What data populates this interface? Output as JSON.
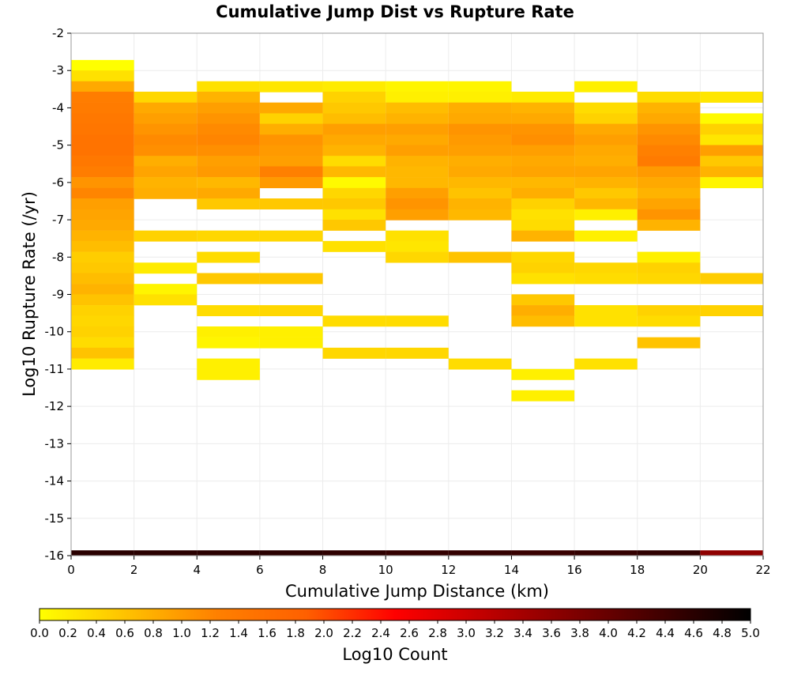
{
  "chart_data": {
    "type": "heatmap",
    "title": "Cumulative Jump Dist vs Rupture Rate",
    "xlabel": "Cumulative Jump Distance (km)",
    "ylabel": "Log10 Rupture Rate (/yr)",
    "xlim": [
      0,
      22
    ],
    "ylim": [
      -16,
      -2
    ],
    "x_ticks": [
      "0",
      "2",
      "4",
      "6",
      "8",
      "10",
      "12",
      "14",
      "16",
      "18",
      "20",
      "22"
    ],
    "y_ticks": [
      "-2",
      "-3",
      "-4",
      "-5",
      "-6",
      "-7",
      "-8",
      "-9",
      "-10",
      "-11",
      "-12",
      "-13",
      "-14",
      "-15",
      "-16"
    ],
    "x_bin_width": 2,
    "y_bin_height": 0.285,
    "grid": true,
    "colorbar": {
      "label": "Log10 Count",
      "range": [
        0,
        5
      ],
      "ticks": [
        "0.0",
        "0.2",
        "0.4",
        "0.6",
        "0.8",
        "1.0",
        "1.2",
        "1.4",
        "1.6",
        "1.8",
        "2.0",
        "2.2",
        "2.4",
        "2.6",
        "2.8",
        "3.0",
        "3.2",
        "3.4",
        "3.6",
        "3.8",
        "4.0",
        "4.2",
        "4.4",
        "4.6",
        "4.8",
        "5.0"
      ],
      "stops": [
        "#ffff00",
        "#ffc000",
        "#ff8000",
        "#ff6000",
        "#ff0000",
        "#c00000",
        "#800000",
        "#400000",
        "#000000"
      ]
    },
    "cells": [
      {
        "x": 0,
        "values": [
          [
            -2.86,
            0.0
          ],
          [
            -3.14,
            0.3
          ],
          [
            -3.43,
            0.85
          ],
          [
            -3.71,
            1.3
          ],
          [
            -4.0,
            1.35
          ],
          [
            -4.29,
            1.4
          ],
          [
            -4.57,
            1.45
          ],
          [
            -4.86,
            1.5
          ],
          [
            -5.14,
            1.5
          ],
          [
            -5.43,
            1.4
          ],
          [
            -5.71,
            1.3
          ],
          [
            -6.0,
            1.05
          ],
          [
            -6.29,
            1.2
          ],
          [
            -6.57,
            0.95
          ],
          [
            -6.86,
            0.9
          ],
          [
            -7.14,
            0.85
          ],
          [
            -7.43,
            0.75
          ],
          [
            -7.71,
            0.65
          ],
          [
            -8.0,
            0.5
          ],
          [
            -8.29,
            0.55
          ],
          [
            -8.57,
            0.65
          ],
          [
            -8.86,
            0.75
          ],
          [
            -9.14,
            0.6
          ],
          [
            -9.43,
            0.45
          ],
          [
            -9.71,
            0.4
          ],
          [
            -10.0,
            0.45
          ],
          [
            -10.29,
            0.35
          ],
          [
            -10.57,
            0.6
          ],
          [
            -10.86,
            0.2
          ]
        ]
      },
      {
        "x": 2,
        "values": [
          [
            -3.71,
            0.4
          ],
          [
            -4.0,
            0.85
          ],
          [
            -4.29,
            0.95
          ],
          [
            -4.57,
            1.05
          ],
          [
            -4.86,
            1.15
          ],
          [
            -5.14,
            1.1
          ],
          [
            -5.43,
            0.8
          ],
          [
            -5.71,
            0.9
          ],
          [
            -6.0,
            0.75
          ],
          [
            -6.29,
            0.8
          ],
          [
            -7.43,
            0.45
          ],
          [
            -8.29,
            0.2
          ],
          [
            -8.86,
            0.1
          ],
          [
            -9.14,
            0.3
          ]
        ]
      },
      {
        "x": 4,
        "values": [
          [
            -3.43,
            0.3
          ],
          [
            -3.71,
            0.75
          ],
          [
            -4.0,
            0.95
          ],
          [
            -4.29,
            1.05
          ],
          [
            -4.57,
            1.15
          ],
          [
            -4.86,
            1.2
          ],
          [
            -5.14,
            1.1
          ],
          [
            -5.43,
            0.95
          ],
          [
            -5.71,
            1.0
          ],
          [
            -6.0,
            0.7
          ],
          [
            -6.29,
            0.85
          ],
          [
            -6.57,
            0.55
          ],
          [
            -7.43,
            0.4
          ],
          [
            -8.0,
            0.35
          ],
          [
            -8.57,
            0.55
          ],
          [
            -9.43,
            0.35
          ],
          [
            -10.0,
            0.15
          ],
          [
            -10.29,
            0.1
          ],
          [
            -10.86,
            0.15
          ],
          [
            -11.14,
            0.15
          ]
        ]
      },
      {
        "x": 6,
        "values": [
          [
            -3.43,
            0.25
          ],
          [
            -4.0,
            0.85
          ],
          [
            -4.29,
            0.45
          ],
          [
            -4.57,
            0.8
          ],
          [
            -4.86,
            1.05
          ],
          [
            -5.14,
            1.0
          ],
          [
            -5.43,
            0.95
          ],
          [
            -5.71,
            1.25
          ],
          [
            -6.0,
            1.0
          ],
          [
            -6.57,
            0.55
          ],
          [
            -7.43,
            0.4
          ],
          [
            -8.57,
            0.55
          ],
          [
            -9.43,
            0.4
          ],
          [
            -10.0,
            0.15
          ],
          [
            -10.29,
            0.15
          ]
        ]
      },
      {
        "x": 8,
        "values": [
          [
            -3.43,
            0.2
          ],
          [
            -3.71,
            0.45
          ],
          [
            -4.0,
            0.55
          ],
          [
            -4.29,
            0.65
          ],
          [
            -4.57,
            0.95
          ],
          [
            -4.86,
            0.85
          ],
          [
            -5.14,
            0.75
          ],
          [
            -5.43,
            0.35
          ],
          [
            -5.71,
            0.7
          ],
          [
            -6.0,
            0.05
          ],
          [
            -6.29,
            0.4
          ],
          [
            -6.57,
            0.55
          ],
          [
            -6.86,
            0.3
          ],
          [
            -7.14,
            0.55
          ],
          [
            -7.71,
            0.3
          ],
          [
            -9.71,
            0.35
          ],
          [
            -10.57,
            0.4
          ]
        ]
      },
      {
        "x": 10,
        "values": [
          [
            -3.43,
            0.1
          ],
          [
            -3.71,
            0.15
          ],
          [
            -4.0,
            0.65
          ],
          [
            -4.29,
            0.75
          ],
          [
            -4.57,
            0.95
          ],
          [
            -4.86,
            0.85
          ],
          [
            -5.14,
            0.95
          ],
          [
            -5.43,
            0.75
          ],
          [
            -5.71,
            0.7
          ],
          [
            -6.0,
            0.7
          ],
          [
            -6.29,
            0.95
          ],
          [
            -6.57,
            1.05
          ],
          [
            -6.86,
            0.95
          ],
          [
            -7.43,
            0.3
          ],
          [
            -7.71,
            0.25
          ],
          [
            -8.0,
            0.4
          ],
          [
            -9.71,
            0.35
          ],
          [
            -10.57,
            0.4
          ]
        ]
      },
      {
        "x": 12,
        "values": [
          [
            -3.43,
            0.1
          ],
          [
            -3.71,
            0.15
          ],
          [
            -4.0,
            0.8
          ],
          [
            -4.29,
            0.85
          ],
          [
            -4.57,
            1.05
          ],
          [
            -4.86,
            1.0
          ],
          [
            -5.14,
            0.95
          ],
          [
            -5.43,
            0.8
          ],
          [
            -5.71,
            0.85
          ],
          [
            -6.0,
            0.7
          ],
          [
            -6.29,
            0.6
          ],
          [
            -6.57,
            0.75
          ],
          [
            -6.86,
            0.7
          ],
          [
            -8.0,
            0.6
          ],
          [
            -10.86,
            0.35
          ]
        ]
      },
      {
        "x": 14,
        "values": [
          [
            -3.71,
            0.2
          ],
          [
            -4.0,
            0.75
          ],
          [
            -4.29,
            0.85
          ],
          [
            -4.57,
            1.05
          ],
          [
            -4.86,
            1.1
          ],
          [
            -5.14,
            0.95
          ],
          [
            -5.43,
            0.85
          ],
          [
            -5.71,
            0.9
          ],
          [
            -6.0,
            0.7
          ],
          [
            -6.29,
            0.8
          ],
          [
            -6.57,
            0.45
          ],
          [
            -6.86,
            0.3
          ],
          [
            -7.14,
            0.35
          ],
          [
            -7.43,
            0.75
          ],
          [
            -8.0,
            0.4
          ],
          [
            -8.29,
            0.45
          ],
          [
            -8.57,
            0.3
          ],
          [
            -9.14,
            0.55
          ],
          [
            -9.43,
            0.8
          ],
          [
            -9.71,
            0.65
          ],
          [
            -11.14,
            0.15
          ],
          [
            -11.71,
            0.15
          ]
        ]
      },
      {
        "x": 16,
        "values": [
          [
            -3.43,
            0.15
          ],
          [
            -4.0,
            0.35
          ],
          [
            -4.29,
            0.45
          ],
          [
            -4.57,
            0.85
          ],
          [
            -4.86,
            0.95
          ],
          [
            -5.14,
            0.85
          ],
          [
            -5.43,
            0.8
          ],
          [
            -5.71,
            0.9
          ],
          [
            -6.0,
            0.75
          ],
          [
            -6.29,
            0.55
          ],
          [
            -6.57,
            0.7
          ],
          [
            -6.86,
            0.15
          ],
          [
            -7.43,
            0.15
          ],
          [
            -8.29,
            0.4
          ],
          [
            -8.57,
            0.35
          ],
          [
            -9.43,
            0.3
          ],
          [
            -9.71,
            0.3
          ],
          [
            -10.86,
            0.3
          ]
        ]
      },
      {
        "x": 18,
        "values": [
          [
            -3.71,
            0.35
          ],
          [
            -4.0,
            0.75
          ],
          [
            -4.29,
            0.85
          ],
          [
            -4.57,
            1.05
          ],
          [
            -4.86,
            1.15
          ],
          [
            -5.14,
            1.25
          ],
          [
            -5.43,
            1.35
          ],
          [
            -5.71,
            1.0
          ],
          [
            -6.0,
            0.85
          ],
          [
            -6.29,
            0.75
          ],
          [
            -6.57,
            0.9
          ],
          [
            -6.86,
            1.05
          ],
          [
            -7.14,
            0.75
          ],
          [
            -8.0,
            0.15
          ],
          [
            -8.29,
            0.45
          ],
          [
            -8.57,
            0.4
          ],
          [
            -9.43,
            0.45
          ],
          [
            -9.71,
            0.35
          ],
          [
            -10.29,
            0.6
          ]
        ]
      },
      {
        "x": 20,
        "values": [
          [
            -3.71,
            0.25
          ],
          [
            -4.29,
            0.05
          ],
          [
            -4.57,
            0.45
          ],
          [
            -4.86,
            0.25
          ],
          [
            -5.14,
            0.95
          ],
          [
            -5.43,
            0.55
          ],
          [
            -5.71,
            0.75
          ],
          [
            -6.0,
            0.1
          ],
          [
            -8.57,
            0.5
          ],
          [
            -9.43,
            0.45
          ]
        ]
      }
    ],
    "bottom_row": {
      "y": -16,
      "values": [
        [
          0,
          4.6
        ],
        [
          2,
          4.6
        ],
        [
          4,
          4.6
        ],
        [
          6,
          4.6
        ],
        [
          8,
          4.55
        ],
        [
          10,
          4.5
        ],
        [
          12,
          4.5
        ],
        [
          14,
          4.45
        ],
        [
          16,
          4.5
        ],
        [
          18,
          4.55
        ],
        [
          20,
          3.6
        ]
      ]
    }
  }
}
